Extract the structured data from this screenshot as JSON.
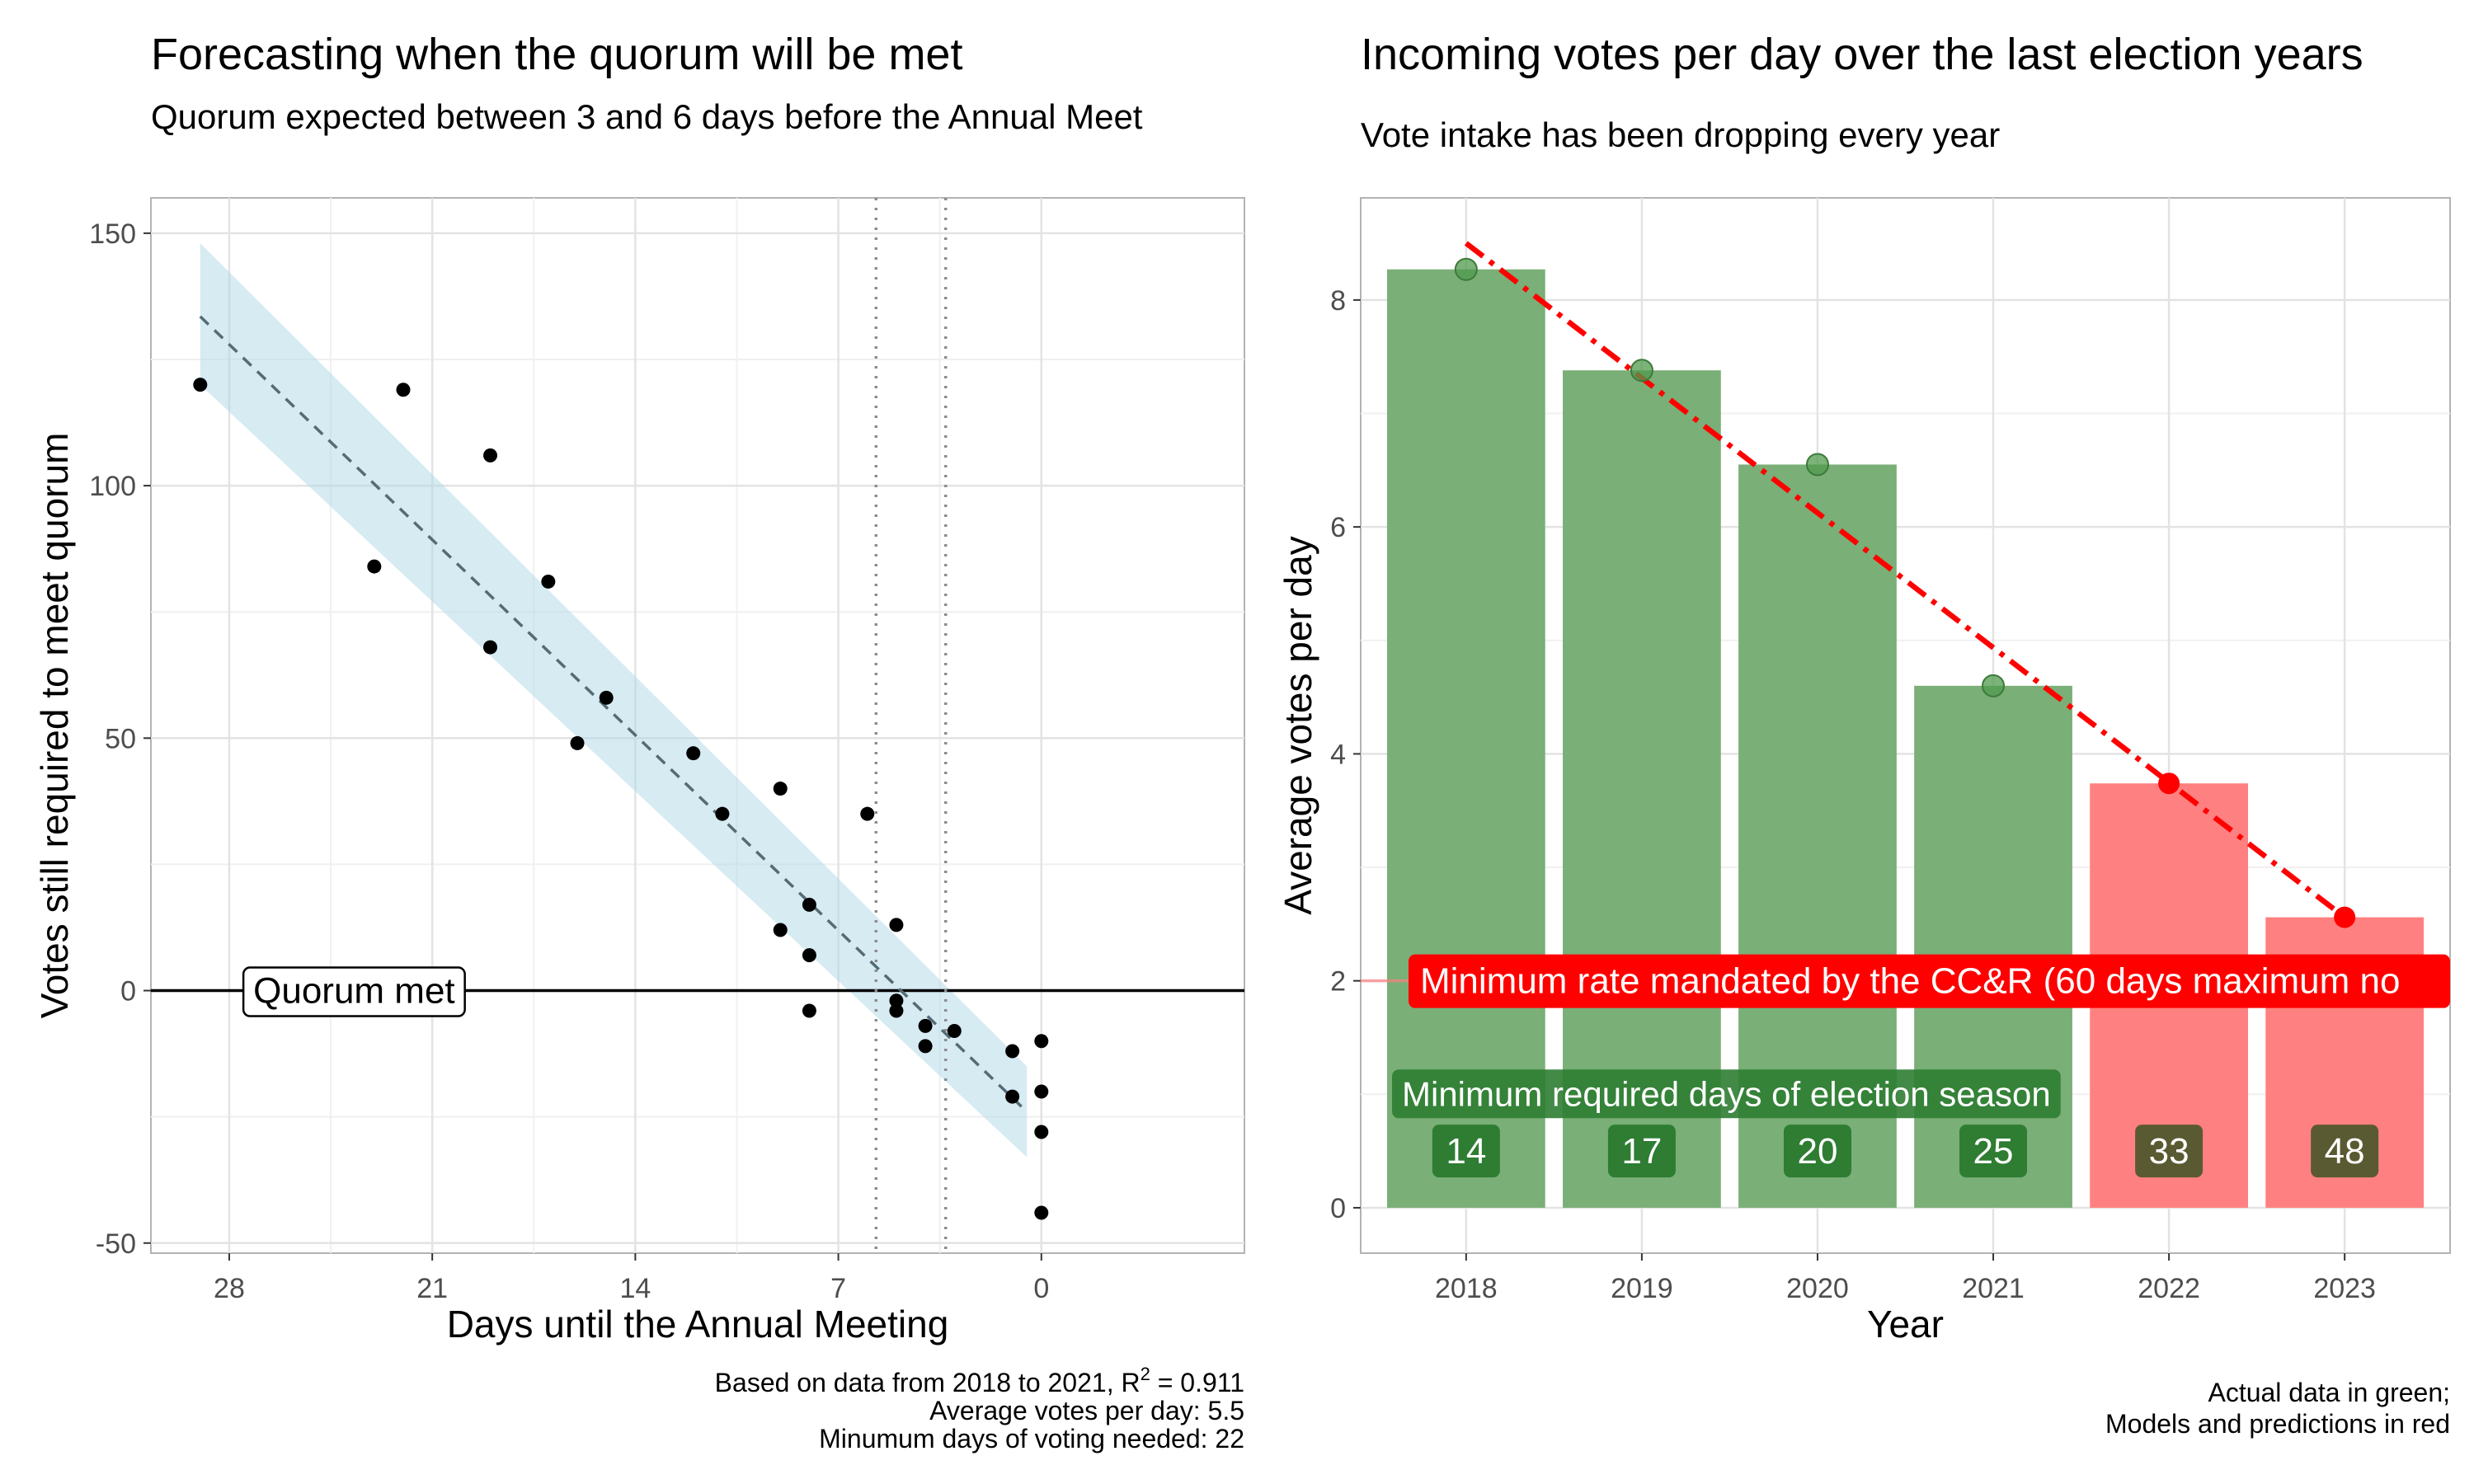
{
  "chart_data": [
    {
      "type": "scatter",
      "title": "Forecasting when the quorum will be met",
      "subtitle": "Quorum expected between 3 and 6 days before the Annual Meet",
      "xlabel": "Days until the Annual Meeting",
      "ylabel": "Votes still required to meet quorum",
      "xlim": [
        30.7,
        -7.0
      ],
      "ylim": [
        -52,
        157
      ],
      "x_reversed": true,
      "x_ticks": [
        28,
        21,
        14,
        7,
        0
      ],
      "x_tick_labels": [
        "28",
        "21",
        "14",
        "7",
        "0"
      ],
      "y_ticks": [
        150,
        100,
        50,
        0,
        -50
      ],
      "y_tick_labels": [
        "150",
        "100",
        "50",
        "0",
        "-50"
      ],
      "grid": true,
      "points": [
        {
          "x": 29.0,
          "y": 120
        },
        {
          "x": 23.0,
          "y": 84
        },
        {
          "x": 22.0,
          "y": 119
        },
        {
          "x": 19.0,
          "y": 106
        },
        {
          "x": 19.0,
          "y": 68
        },
        {
          "x": 17.0,
          "y": 81
        },
        {
          "x": 16.0,
          "y": 49
        },
        {
          "x": 15.0,
          "y": 58
        },
        {
          "x": 12.0,
          "y": 47
        },
        {
          "x": 11.0,
          "y": 35
        },
        {
          "x": 9.0,
          "y": 40
        },
        {
          "x": 9.0,
          "y": 12
        },
        {
          "x": 8.0,
          "y": 17
        },
        {
          "x": 8.0,
          "y": 7
        },
        {
          "x": 8.0,
          "y": -4
        },
        {
          "x": 6.0,
          "y": 35
        },
        {
          "x": 5.0,
          "y": 13
        },
        {
          "x": 5.0,
          "y": -2
        },
        {
          "x": 5.0,
          "y": -4
        },
        {
          "x": 4.0,
          "y": -7
        },
        {
          "x": 4.0,
          "y": -11
        },
        {
          "x": 3.0,
          "y": -8
        },
        {
          "x": 1.0,
          "y": -12
        },
        {
          "x": 1.0,
          "y": -21
        },
        {
          "x": 0.0,
          "y": -10
        },
        {
          "x": 0.0,
          "y": -20
        },
        {
          "x": 0.0,
          "y": -28
        },
        {
          "x": 0.0,
          "y": -44
        }
      ],
      "fit_line": {
        "x": [
          29.0,
          0.5
        ],
        "y": [
          133.5,
          -24
        ]
      },
      "confidence_band": {
        "x": [
          29.0,
          0.5
        ],
        "upper": [
          148,
          -15
        ],
        "lower": [
          120,
          -33
        ]
      },
      "hline_y": 0,
      "vlines_x": [
        5.7,
        3.3
      ],
      "annotations": [
        {
          "text": "Quorum met",
          "x": 27,
          "y": 0
        }
      ],
      "caption_lines": [
        "Based on data from 2018 to 2021, R",
        "2",
        " = 0.911",
        "Average votes per day: 5.5",
        "Minumum days of voting needed: 22"
      ],
      "colors": {
        "points": "#000000",
        "fit": "#556b75",
        "band": "#add8e6",
        "hline": "#000000",
        "vlines": "#8c8c8c"
      }
    },
    {
      "type": "bar",
      "title": "Incoming votes per day over the last election years",
      "subtitle": "Vote intake has been dropping every year",
      "xlabel": "Year",
      "ylabel": "Average votes per day",
      "ylim": [
        -0.4,
        8.9
      ],
      "y_ticks": [
        0,
        2,
        4,
        6,
        8
      ],
      "y_tick_labels": [
        "0",
        "2",
        "4",
        "6",
        "8"
      ],
      "grid": true,
      "categories": [
        "2018",
        "2019",
        "2020",
        "2021",
        "2022",
        "2023"
      ],
      "values": [
        8.27,
        7.38,
        6.55,
        4.6,
        3.74,
        2.56
      ],
      "bar_status": [
        "actual",
        "actual",
        "actual",
        "actual",
        "predicted",
        "predicted"
      ],
      "point_values": [
        8.27,
        7.38,
        6.55,
        4.6,
        3.74,
        2.56
      ],
      "trend_line": {
        "categories": [
          "2018",
          "2023"
        ],
        "values": [
          8.5,
          2.56
        ]
      },
      "hline_y": 2,
      "min_rate_label": "Minimum rate mandated by the CC&R (60 days maximum no",
      "min_days_label": "Minimum required days of election season",
      "min_days": [
        "14",
        "17",
        "20",
        "25",
        "33",
        "48"
      ],
      "caption_lines": [
        "Actual data in green;",
        "Models and predictions in red"
      ],
      "colors": {
        "actual": "#7aaf77",
        "predicted": "#ff8080",
        "actual_point": "#4f9a4c",
        "predicted_point": "#ff0000",
        "trend": "#ff0000",
        "label_green": "#2e7d32",
        "label_red": "#ff0000",
        "days_box_actual": "#2e7d32",
        "days_box_predicted": "#5a5a32"
      }
    }
  ]
}
